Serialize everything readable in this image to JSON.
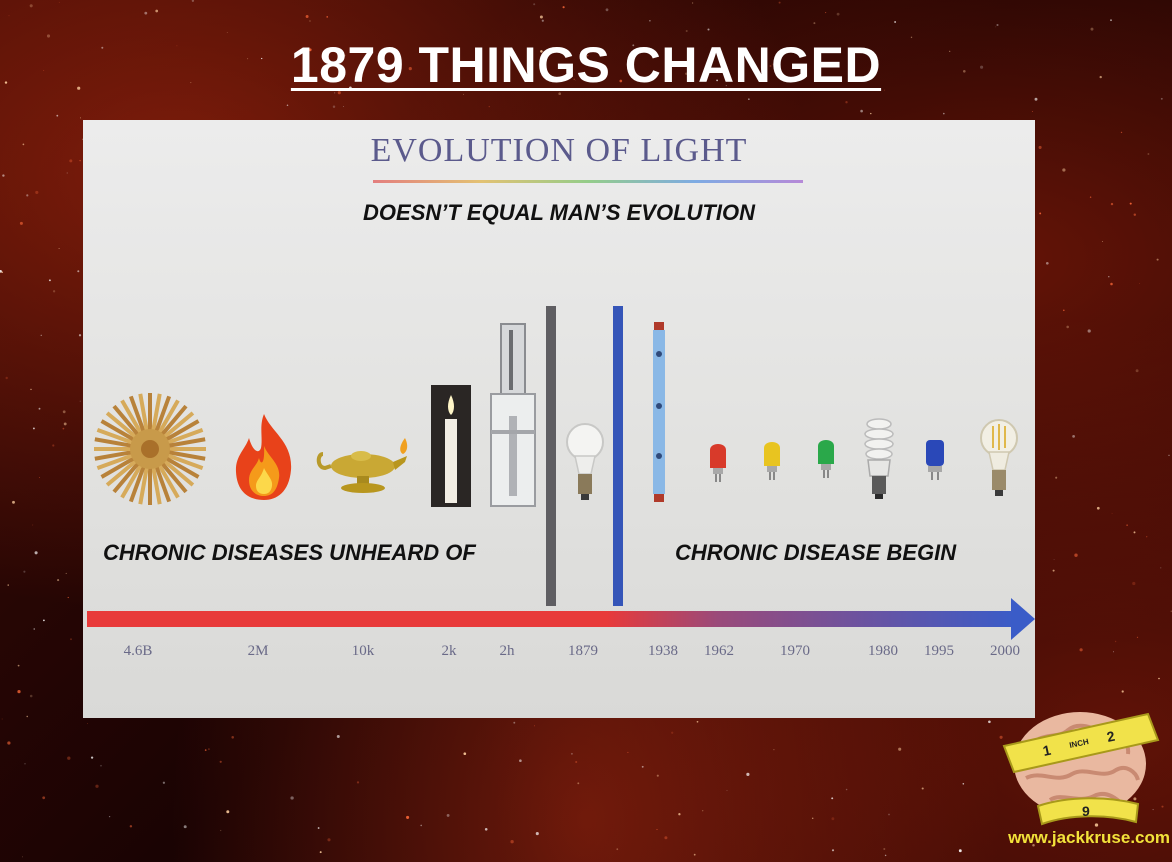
{
  "slide": {
    "title": " 1879 THINGS CHANGED",
    "url": "www.jackkruse.com"
  },
  "figure": {
    "title": "EVOLUTION OF LIGHT",
    "subtitle": "DOESN’T EQUAL MAN’S EVOLUTION",
    "left_caption": "CHRONIC DISEASES UNHEARD OF",
    "right_caption": "CHRONIC DISEASE BEGIN",
    "timeline_ticks": [
      "4.6B",
      "2M",
      "10k",
      "2k",
      "2h",
      "1879",
      "1938",
      "1962",
      "1970",
      "1980",
      "1995",
      "2000"
    ],
    "light_sources": [
      "sun-icon",
      "fire-icon",
      "oil-lamp-icon",
      "candle-icon",
      "gas-lamp-icon",
      "incandescent-bulb-icon",
      "fluorescent-tube-icon",
      "red-led-icon",
      "yellow-led-icon",
      "green-led-icon",
      "cfl-bulb-icon",
      "blue-led-icon",
      "led-filament-bulb-icon"
    ],
    "colors": {
      "timeline_left": "#e83a3a",
      "timeline_right": "#3a5cc8",
      "title": "#5b5a8c"
    }
  },
  "logo": {
    "tape_marks": [
      "1",
      "2",
      "INCH",
      "9"
    ]
  }
}
